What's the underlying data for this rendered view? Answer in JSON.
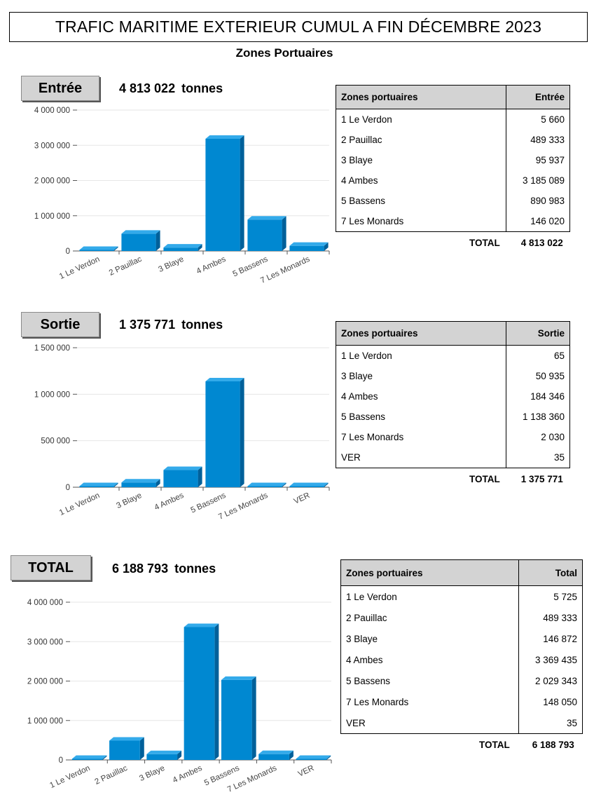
{
  "page": {
    "title": "TRAFIC MARITIME EXTERIEUR CUMUL A FIN DÉCEMBRE 2023",
    "subtitle": "Zones Portuaires"
  },
  "sections": [
    {
      "label": "Entrée",
      "total_value": "4 813 022",
      "unit": "tonnes",
      "table": {
        "headers": [
          "Zones portuaires",
          "Entrée"
        ],
        "rows": [
          [
            "1 Le Verdon",
            "5 660"
          ],
          [
            "2 Pauillac",
            "489 333"
          ],
          [
            "3 Blaye",
            "95 937"
          ],
          [
            "4 Ambes",
            "3 185 089"
          ],
          [
            "5 Bassens",
            "890 983"
          ],
          [
            "7 Les Monards",
            "146 020"
          ]
        ],
        "total_label": "TOTAL",
        "total_value": "4 813 022"
      }
    },
    {
      "label": "Sortie",
      "total_value": "1 375 771",
      "unit": "tonnes",
      "table": {
        "headers": [
          "Zones portuaires",
          "Sortie"
        ],
        "rows": [
          [
            "1 Le Verdon",
            "65"
          ],
          [
            "3 Blaye",
            "50 935"
          ],
          [
            "4 Ambes",
            "184 346"
          ],
          [
            "5 Bassens",
            "1 138 360"
          ],
          [
            "7 Les Monards",
            "2 030"
          ],
          [
            "VER",
            "35"
          ]
        ],
        "total_label": "TOTAL",
        "total_value": "1 375 771"
      }
    },
    {
      "label": "TOTAL",
      "total_value": "6 188 793",
      "unit": "tonnes",
      "table": {
        "headers": [
          "Zones portuaires",
          "Total"
        ],
        "rows": [
          [
            "1 Le Verdon",
            "5 725"
          ],
          [
            "2 Pauillac",
            "489 333"
          ],
          [
            "3 Blaye",
            "146 872"
          ],
          [
            "4 Ambes",
            "3 369 435"
          ],
          [
            "5 Bassens",
            "2 029 343"
          ],
          [
            "7 Les Monards",
            "148 050"
          ],
          [
            "VER",
            "35"
          ]
        ],
        "total_label": "TOTAL",
        "total_value": "6 188 793"
      }
    }
  ],
  "colors": {
    "bar_front": "#0088d1",
    "bar_top": "#33aaea",
    "bar_side": "#00609a",
    "label_fill": "#d3d3d3"
  },
  "chart_data": [
    {
      "type": "bar",
      "categories": [
        "1 Le Verdon",
        "2 Pauillac",
        "3 Blaye",
        "4 Ambes",
        "5 Bassens",
        "7 Les Monards"
      ],
      "values": [
        5660,
        489333,
        95937,
        3185089,
        890983,
        146020
      ],
      "ylim": [
        0,
        4000000
      ],
      "yticks": [
        0,
        1000000,
        2000000,
        3000000,
        4000000
      ],
      "ytick_labels": [
        "0",
        "1 000 000",
        "2 000 000",
        "3 000 000",
        "4 000 000"
      ],
      "grid": true
    },
    {
      "type": "bar",
      "categories": [
        "1 Le Verdon",
        "3 Blaye",
        "4 Ambes",
        "5 Bassens",
        "7 Les Monards",
        "VER"
      ],
      "values": [
        65,
        50935,
        184346,
        1138360,
        2030,
        35
      ],
      "ylim": [
        0,
        1500000
      ],
      "yticks": [
        0,
        500000,
        1000000,
        1500000
      ],
      "ytick_labels": [
        "0",
        "500 000",
        "1 000 000",
        "1 500 000"
      ],
      "grid": true
    },
    {
      "type": "bar",
      "categories": [
        "1 Le Verdon",
        "2 Pauillac",
        "3 Blaye",
        "4 Ambes",
        "5 Bassens",
        "7 Les Monards",
        "VER"
      ],
      "values": [
        5725,
        489333,
        146872,
        3369435,
        2029343,
        148050,
        35
      ],
      "ylim": [
        0,
        4000000
      ],
      "yticks": [
        0,
        1000000,
        2000000,
        3000000,
        4000000
      ],
      "ytick_labels": [
        "0",
        "1 000 000",
        "2 000 000",
        "3 000 000",
        "4 000 000"
      ],
      "grid": true
    }
  ]
}
